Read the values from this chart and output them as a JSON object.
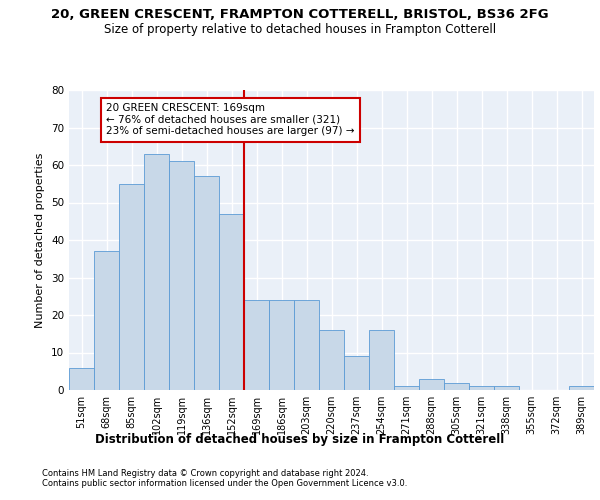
{
  "title1": "20, GREEN CRESCENT, FRAMPTON COTTERELL, BRISTOL, BS36 2FG",
  "title2": "Size of property relative to detached houses in Frampton Cotterell",
  "xlabel": "Distribution of detached houses by size in Frampton Cotterell",
  "ylabel": "Number of detached properties",
  "footnote1": "Contains HM Land Registry data © Crown copyright and database right 2024.",
  "footnote2": "Contains public sector information licensed under the Open Government Licence v3.0.",
  "annotation_title": "20 GREEN CRESCENT: 169sqm",
  "annotation_line1": "← 76% of detached houses are smaller (321)",
  "annotation_line2": "23% of semi-detached houses are larger (97) →",
  "bar_color": "#c8d8e8",
  "bar_edge_color": "#5b9bd5",
  "vline_color": "#cc0000",
  "annotation_box_color": "#ffffff",
  "annotation_box_edge": "#cc0000",
  "categories": [
    "51sqm",
    "68sqm",
    "85sqm",
    "102sqm",
    "119sqm",
    "136sqm",
    "152sqm",
    "169sqm",
    "186sqm",
    "203sqm",
    "220sqm",
    "237sqm",
    "254sqm",
    "271sqm",
    "288sqm",
    "305sqm",
    "321sqm",
    "338sqm",
    "355sqm",
    "372sqm",
    "389sqm"
  ],
  "values": [
    6,
    37,
    55,
    63,
    61,
    57,
    47,
    24,
    24,
    24,
    16,
    9,
    16,
    1,
    3,
    2,
    1,
    1,
    0,
    0,
    1
  ],
  "ylim": [
    0,
    80
  ],
  "yticks": [
    0,
    10,
    20,
    30,
    40,
    50,
    60,
    70,
    80
  ],
  "background_color": "#eaf0f8",
  "grid_color": "#ffffff",
  "title1_fontsize": 9.5,
  "title2_fontsize": 8.5,
  "xlabel_fontsize": 8.5,
  "ylabel_fontsize": 8,
  "tick_fontsize": 7,
  "annot_fontsize": 7.5,
  "footnote_fontsize": 6
}
